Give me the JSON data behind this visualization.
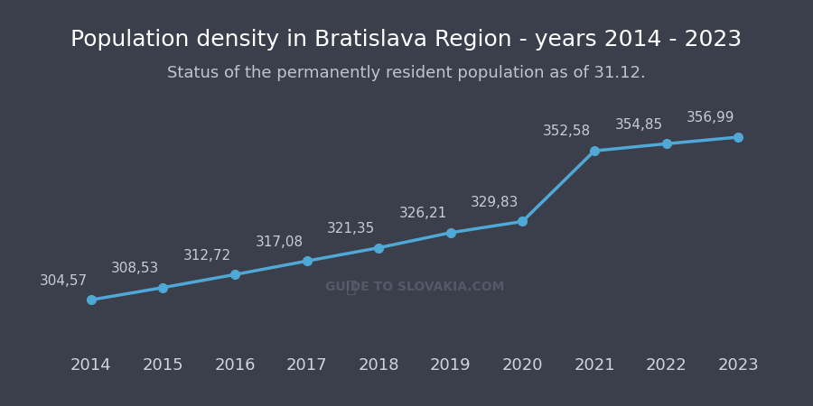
{
  "title": "Population density in Bratislava Region - years 2014 - 2023",
  "subtitle": "Status of the permanently resident population as of 31.12.",
  "years": [
    2014,
    2015,
    2016,
    2017,
    2018,
    2019,
    2020,
    2021,
    2022,
    2023
  ],
  "values": [
    304.57,
    308.53,
    312.72,
    317.08,
    321.35,
    326.21,
    329.83,
    352.58,
    354.85,
    356.99
  ],
  "labels": [
    "304,57",
    "308,53",
    "312,72",
    "317,08",
    "321,35",
    "326,21",
    "329,83",
    "352,58",
    "354,85",
    "356,99"
  ],
  "background_color": "#3a3f4b",
  "line_color": "#4fa8d5",
  "marker_color": "#4fa8d5",
  "grid_color": "#4d5261",
  "text_color": "#d0d4de",
  "title_color": "#ffffff",
  "subtitle_color": "#c0c4ce",
  "label_color": "#c8ccd8",
  "watermark_text": "GUIDE TO SLOVAKIA.COM",
  "ylim_min": 290,
  "ylim_max": 375,
  "title_fontsize": 18,
  "subtitle_fontsize": 13,
  "tick_fontsize": 13,
  "label_fontsize": 11
}
